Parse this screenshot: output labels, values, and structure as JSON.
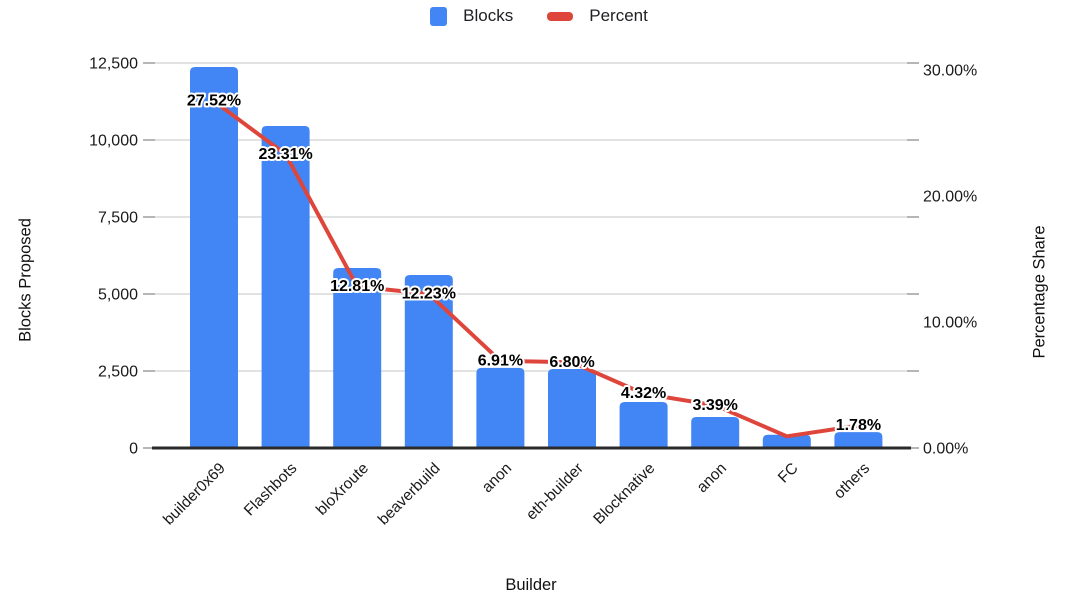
{
  "theme": {
    "background": "#ffffff",
    "grid_color": "#d9d9d9",
    "tick_color": "#9e9e9e",
    "axis_line_color": "#2b2b2b",
    "bar_color": "#4285f4",
    "line_color": "#de463c"
  },
  "legend": {
    "position": "top",
    "items": [
      {
        "label": "Blocks",
        "swatch": "square"
      },
      {
        "label": "Percent",
        "swatch": "dash"
      }
    ]
  },
  "chart_data": {
    "type": "combo",
    "categories": [
      "builder0x69",
      "Flashbots",
      "bloXroute",
      "beaverbuild",
      "anon",
      "eth-builder",
      "Blocknative",
      "anon",
      "FC",
      "others"
    ],
    "series": [
      {
        "name": "Blocks",
        "type": "bar",
        "axis": "left",
        "color": "#4285f4",
        "values": [
          12370,
          10455,
          5845,
          5615,
          2600,
          2565,
          1495,
          1005,
          430,
          515
        ]
      },
      {
        "name": "Percent",
        "type": "line",
        "axis": "right",
        "color": "#de463c",
        "values": [
          27.52,
          23.31,
          12.81,
          12.23,
          6.91,
          6.8,
          4.32,
          3.39,
          0.93,
          1.78
        ],
        "labels": [
          "27.52%",
          "23.31%",
          "12.81%",
          "12.23%",
          "6.91%",
          "6.80%",
          "4.32%",
          "3.39%",
          "",
          "1.78%"
        ]
      }
    ],
    "left_axis": {
      "title": "Blocks Proposed",
      "ticks": [
        "0",
        "2,500",
        "5,000",
        "7,500",
        "10,000",
        "12,500"
      ],
      "tick_values": [
        0,
        2500,
        5000,
        7500,
        10000,
        12500
      ],
      "max": 12500
    },
    "right_axis": {
      "title": "Percentage Share",
      "ticks": [
        "0.00%",
        "10.00%",
        "20.00%",
        "30.00%"
      ],
      "tick_values": [
        0,
        10,
        20,
        30
      ],
      "max": 30
    },
    "x_axis": {
      "title": "Builder"
    },
    "grid": true,
    "legend_position": "top"
  }
}
